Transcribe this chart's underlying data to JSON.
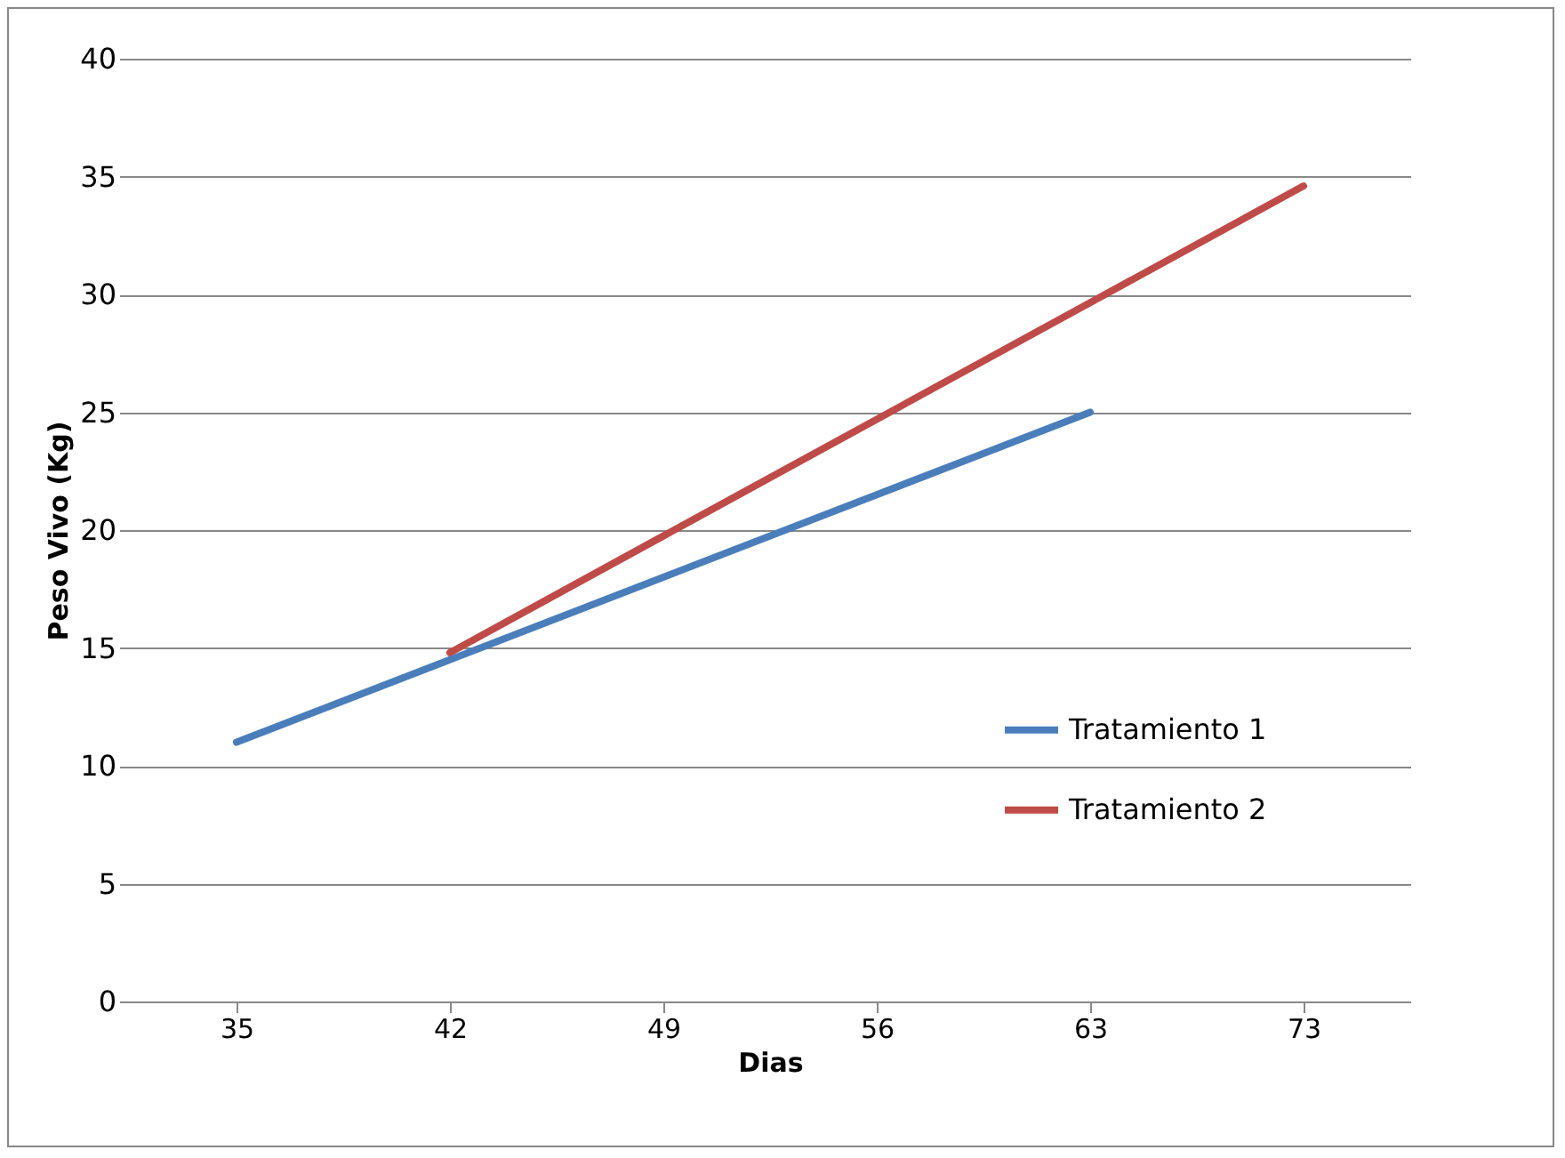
{
  "chart_data": {
    "type": "line",
    "xlabel": "Dias",
    "ylabel": "Peso  Vivo (Kg)",
    "categories": [
      "35",
      "42",
      "49",
      "56",
      "63",
      "73"
    ],
    "series": [
      {
        "name": "Tratamiento 1",
        "color": "#4a7ebb",
        "values": [
          11,
          14.5,
          18,
          21.5,
          25,
          null
        ]
      },
      {
        "name": "Tratamiento 2",
        "color": "#be4b48",
        "values": [
          null,
          14.8,
          19.75,
          24.7,
          29.65,
          34.6
        ]
      }
    ],
    "ylim": [
      0,
      40
    ],
    "yticks": [
      0,
      5,
      10,
      15,
      20,
      25,
      30,
      35,
      40
    ],
    "grid": "y",
    "legend": "right",
    "marker": "none",
    "line_style": "solid"
  }
}
